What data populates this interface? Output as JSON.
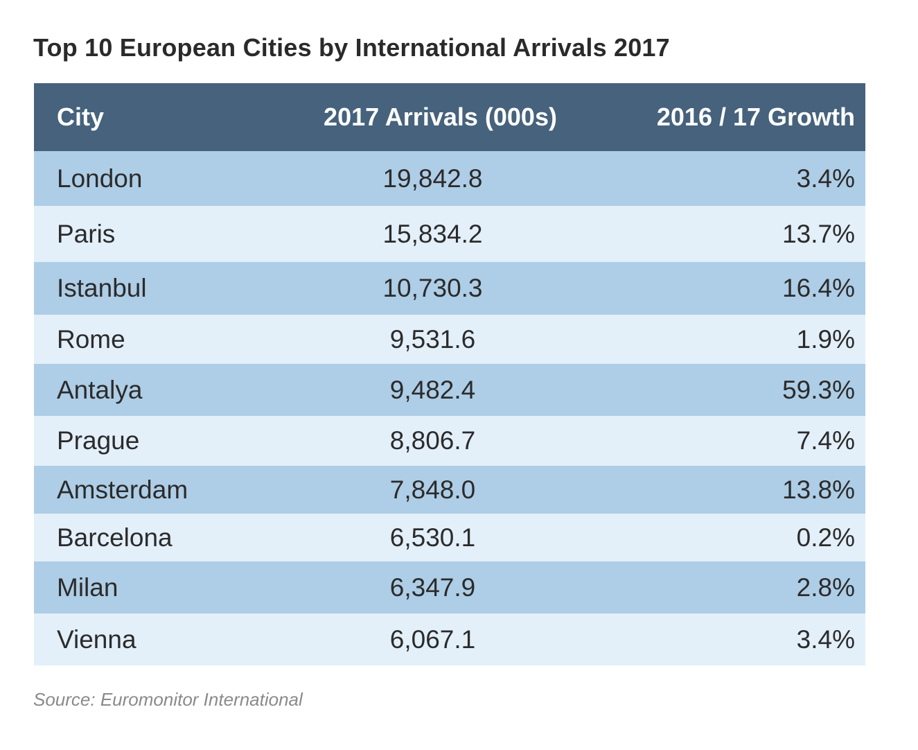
{
  "chart_data": {
    "type": "table",
    "title": "Top 10 European Cities by International Arrivals 2017",
    "columns": [
      "City",
      "2017 Arrivals (000s)",
      "2016 / 17 Growth"
    ],
    "rows": [
      {
        "city": "London",
        "arrivals": "19,842.8",
        "growth": "3.4%"
      },
      {
        "city": "Paris",
        "arrivals": "15,834.2",
        "growth": "13.7%"
      },
      {
        "city": "Istanbul",
        "arrivals": "10,730.3",
        "growth": "16.4%"
      },
      {
        "city": "Rome",
        "arrivals": "9,531.6",
        "growth": "1.9%"
      },
      {
        "city": "Antalya",
        "arrivals": "9,482.4",
        "growth": "59.3%"
      },
      {
        "city": "Prague",
        "arrivals": "8,806.7",
        "growth": "7.4%"
      },
      {
        "city": "Amsterdam",
        "arrivals": "7,848.0",
        "growth": "13.8%"
      },
      {
        "city": "Barcelona",
        "arrivals": "6,530.1",
        "growth": "0.2%"
      },
      {
        "city": "Milan",
        "arrivals": "6,347.9",
        "growth": "2.8%"
      },
      {
        "city": "Vienna",
        "arrivals": "6,067.1",
        "growth": "3.4%"
      }
    ],
    "source": "Source: Euromonitor International"
  },
  "colors": {
    "header_background": "#46627c",
    "row_dark": "#aecde6",
    "row_light": "#e3eff9",
    "source_text": "#8a8a8a"
  }
}
